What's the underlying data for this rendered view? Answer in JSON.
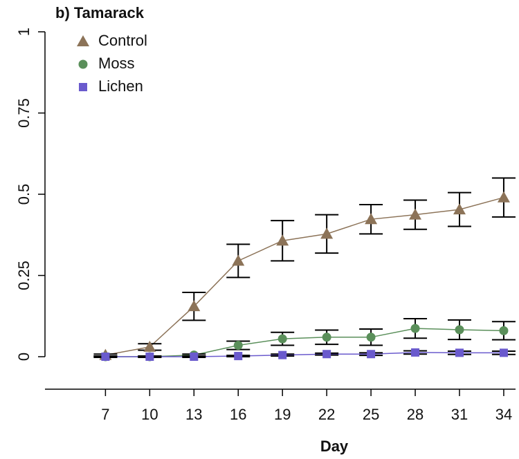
{
  "chart_data": {
    "type": "line",
    "title": "b) Tamarack",
    "x_label": "Day",
    "x": [
      7,
      10,
      13,
      16,
      19,
      22,
      25,
      28,
      31,
      34
    ],
    "series": [
      {
        "name": "Control",
        "color": "#8c7358",
        "marker": "triangle",
        "values": [
          0.005,
          0.03,
          0.155,
          0.295,
          0.357,
          0.378,
          0.423,
          0.437,
          0.453,
          0.49
        ],
        "errors": [
          0.003,
          0.01,
          0.043,
          0.051,
          0.062,
          0.059,
          0.045,
          0.045,
          0.052,
          0.06
        ]
      },
      {
        "name": "Moss",
        "color": "#5a8f5a",
        "marker": "circle",
        "values": [
          0,
          0,
          0.005,
          0.035,
          0.055,
          0.06,
          0.06,
          0.087,
          0.083,
          0.08
        ],
        "errors": [
          0.002,
          0.002,
          0.003,
          0.013,
          0.02,
          0.022,
          0.025,
          0.03,
          0.03,
          0.028
        ]
      },
      {
        "name": "Lichen",
        "color": "#6a5acd",
        "marker": "square",
        "values": [
          0,
          0,
          0,
          0.002,
          0.005,
          0.008,
          0.008,
          0.013,
          0.012,
          0.012
        ],
        "errors": [
          0.002,
          0.002,
          0.002,
          0.002,
          0.003,
          0.003,
          0.004,
          0.005,
          0.005,
          0.005
        ]
      }
    ],
    "xlim": [
      2.9,
      34.8
    ],
    "xticks": [
      7,
      10,
      13,
      16,
      19,
      22,
      25,
      28,
      31,
      34
    ],
    "ylim": [
      0,
      1
    ],
    "yticks": [
      0,
      0.25,
      0.5,
      0.75,
      1
    ],
    "legend": "top-left"
  }
}
